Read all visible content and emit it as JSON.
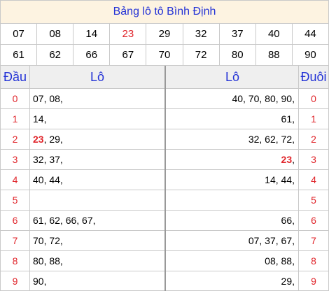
{
  "title": "Bảng lô tô Bình Định",
  "numbers_row1": [
    "07",
    "08",
    "14",
    "23",
    "29",
    "32",
    "37",
    "40",
    "44"
  ],
  "numbers_row2": [
    "61",
    "62",
    "66",
    "67",
    "70",
    "72",
    "80",
    "88",
    "90"
  ],
  "highlight": "23",
  "header": {
    "dau": "Đầu",
    "lo_left": "Lô",
    "lo_right": "Lô",
    "duoi": "Đuôi"
  },
  "rows": [
    {
      "dau": "0",
      "lo_left": "07, 08,",
      "lo_right": "40, 70, 80, 90,",
      "duoi": "0"
    },
    {
      "dau": "1",
      "lo_left": "14,",
      "lo_right": "61,",
      "duoi": "1"
    },
    {
      "dau": "2",
      "lo_left_hl": "23",
      "lo_left": ", 29,",
      "lo_right": "32, 62, 72,",
      "duoi": "2"
    },
    {
      "dau": "3",
      "lo_left": "32, 37,",
      "lo_right_hl": "23",
      "lo_right": ",",
      "duoi": "3"
    },
    {
      "dau": "4",
      "lo_left": "40, 44,",
      "lo_right": "14, 44,",
      "duoi": "4"
    },
    {
      "dau": "5",
      "lo_left": "",
      "lo_right": "",
      "duoi": "5"
    },
    {
      "dau": "6",
      "lo_left": "61, 62, 66, 67,",
      "lo_right": "66,",
      "duoi": "6"
    },
    {
      "dau": "7",
      "lo_left": "70, 72,",
      "lo_right": "07, 37, 67,",
      "duoi": "7"
    },
    {
      "dau": "8",
      "lo_left": "80, 88,",
      "lo_right": "08, 88,",
      "duoi": "8"
    },
    {
      "dau": "9",
      "lo_left": "90,",
      "lo_right": "29,",
      "duoi": "9"
    }
  ]
}
